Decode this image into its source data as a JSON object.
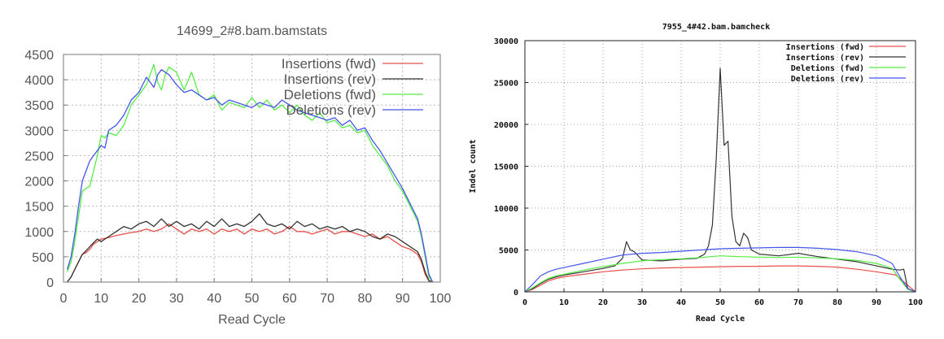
{
  "chart_data": [
    {
      "type": "line",
      "title": "14699_2#8.bam.bamstats",
      "xlabel": "Read Cycle",
      "ylabel": "",
      "xlim": [
        0,
        100
      ],
      "ylim": [
        0,
        4500
      ],
      "xticks": [
        0,
        10,
        20,
        30,
        40,
        50,
        60,
        70,
        80,
        90,
        100
      ],
      "yticks": [
        0,
        500,
        1000,
        1500,
        2000,
        2500,
        3000,
        3500,
        4000,
        4500
      ],
      "grid": true,
      "legend": "top-right",
      "series": [
        {
          "name": "Insertions (fwd)",
          "color": "#e8504a",
          "x": [
            1,
            2,
            3,
            4,
            5,
            6,
            7,
            8,
            9,
            10,
            12,
            14,
            16,
            18,
            20,
            22,
            24,
            26,
            28,
            30,
            32,
            34,
            36,
            38,
            40,
            42,
            44,
            46,
            48,
            50,
            52,
            54,
            56,
            58,
            60,
            62,
            64,
            66,
            68,
            70,
            72,
            74,
            76,
            78,
            80,
            82,
            84,
            86,
            88,
            90,
            92,
            94,
            95,
            96,
            97,
            98
          ],
          "y": [
            0,
            100,
            250,
            400,
            550,
            580,
            650,
            750,
            800,
            850,
            880,
            920,
            950,
            980,
            1000,
            1050,
            1000,
            1050,
            1150,
            1050,
            950,
            1050,
            1000,
            1050,
            950,
            1050,
            1000,
            1050,
            950,
            1050,
            1000,
            1050,
            950,
            1000,
            1100,
            1000,
            1000,
            950,
            1000,
            1050,
            950,
            1000,
            1000,
            950,
            900,
            950,
            850,
            900,
            800,
            700,
            650,
            550,
            400,
            150,
            20,
            0
          ]
        },
        {
          "name": "Insertions (rev)",
          "color": "#333333",
          "x": [
            1,
            2,
            3,
            4,
            5,
            6,
            7,
            8,
            9,
            10,
            12,
            14,
            16,
            18,
            20,
            22,
            24,
            26,
            28,
            30,
            32,
            34,
            36,
            38,
            40,
            42,
            44,
            46,
            48,
            50,
            52,
            54,
            56,
            58,
            60,
            62,
            64,
            66,
            68,
            70,
            72,
            74,
            76,
            78,
            80,
            82,
            84,
            86,
            88,
            90,
            92,
            94,
            95,
            96,
            97,
            98
          ],
          "y": [
            0,
            100,
            250,
            400,
            550,
            620,
            700,
            780,
            850,
            800,
            900,
            1000,
            1100,
            1050,
            1150,
            1200,
            1100,
            1250,
            1100,
            1200,
            1100,
            1150,
            1050,
            1200,
            1100,
            1250,
            1100,
            1150,
            1100,
            1200,
            1350,
            1150,
            1100,
            1150,
            1050,
            1200,
            1100,
            1150,
            1050,
            1100,
            1050,
            1100,
            1000,
            1050,
            1000,
            900,
            850,
            950,
            900,
            800,
            700,
            600,
            450,
            200,
            30,
            0
          ]
        },
        {
          "name": "Deletions (fwd)",
          "color": "#55ee44",
          "x": [
            1,
            2,
            3,
            4,
            5,
            6,
            7,
            8,
            9,
            10,
            11,
            12,
            14,
            16,
            18,
            20,
            22,
            24,
            25,
            26,
            27,
            28,
            29,
            30,
            32,
            34,
            36,
            38,
            40,
            42,
            44,
            46,
            48,
            50,
            52,
            54,
            56,
            58,
            60,
            62,
            64,
            66,
            68,
            70,
            72,
            74,
            76,
            78,
            80,
            82,
            84,
            86,
            88,
            90,
            92,
            94,
            95,
            96,
            97,
            98
          ],
          "y": [
            200,
            400,
            800,
            1300,
            1800,
            1850,
            1900,
            2200,
            2500,
            2900,
            2850,
            2950,
            2900,
            3100,
            3500,
            3700,
            3900,
            4300,
            3950,
            3800,
            4100,
            4250,
            4200,
            4150,
            3800,
            4150,
            3700,
            3600,
            3700,
            3400,
            3550,
            3500,
            3450,
            3650,
            3450,
            3600,
            3400,
            3500,
            3350,
            3500,
            3300,
            3200,
            3350,
            3150,
            3200,
            3050,
            3100,
            2950,
            3000,
            2700,
            2500,
            2300,
            2000,
            1800,
            1500,
            1200,
            900,
            500,
            100,
            0
          ]
        },
        {
          "name": "Deletions (rev)",
          "color": "#4455ee",
          "x": [
            1,
            2,
            3,
            4,
            5,
            6,
            7,
            8,
            9,
            10,
            11,
            12,
            14,
            16,
            18,
            20,
            22,
            24,
            25,
            26,
            27,
            28,
            29,
            30,
            32,
            34,
            36,
            38,
            40,
            42,
            44,
            46,
            48,
            50,
            52,
            54,
            56,
            58,
            60,
            62,
            64,
            66,
            68,
            70,
            72,
            74,
            76,
            78,
            80,
            82,
            84,
            86,
            88,
            90,
            92,
            94,
            95,
            96,
            97,
            98
          ],
          "y": [
            250,
            500,
            950,
            1500,
            2000,
            2200,
            2400,
            2500,
            2600,
            2700,
            2650,
            3000,
            3100,
            3300,
            3600,
            3750,
            4050,
            3850,
            4100,
            4200,
            4150,
            4100,
            4000,
            3900,
            3750,
            3800,
            3700,
            3600,
            3650,
            3500,
            3600,
            3550,
            3500,
            3450,
            3550,
            3500,
            3450,
            3600,
            3500,
            3400,
            3350,
            3300,
            3250,
            3200,
            3250,
            3100,
            3200,
            3000,
            3050,
            2800,
            2600,
            2350,
            2100,
            1850,
            1550,
            1250,
            950,
            550,
            150,
            0
          ]
        }
      ]
    },
    {
      "type": "line",
      "title": "7955_4#42.bam.bamcheck",
      "xlabel": "Read Cycle",
      "ylabel": "Indel count",
      "xlim": [
        0,
        100
      ],
      "ylim": [
        0,
        30000
      ],
      "xticks": [
        0,
        10,
        20,
        30,
        40,
        50,
        60,
        70,
        80,
        90,
        100
      ],
      "yticks": [
        0,
        5000,
        10000,
        15000,
        20000,
        25000,
        30000
      ],
      "grid": true,
      "legend": "top-right",
      "series": [
        {
          "name": "Insertions (fwd)",
          "color": "#e8504a",
          "x": [
            0,
            2,
            4,
            6,
            8,
            10,
            15,
            20,
            25,
            30,
            35,
            40,
            45,
            50,
            55,
            60,
            65,
            70,
            75,
            80,
            85,
            90,
            95,
            98,
            100
          ],
          "y": [
            0,
            300,
            800,
            1300,
            1600,
            1800,
            2100,
            2400,
            2600,
            2750,
            2850,
            2900,
            2950,
            3000,
            3050,
            3050,
            3100,
            3100,
            3050,
            2950,
            2700,
            2400,
            2000,
            800,
            0
          ]
        },
        {
          "name": "Insertions (rev)",
          "color": "#333333",
          "x": [
            0,
            2,
            4,
            6,
            8,
            10,
            15,
            20,
            23,
            25,
            26,
            27,
            28,
            30,
            35,
            40,
            44,
            46,
            47,
            48,
            49,
            50,
            51,
            52,
            53,
            54,
            55,
            56,
            57,
            58,
            60,
            65,
            70,
            75,
            80,
            85,
            90,
            94,
            96,
            97,
            98,
            100
          ],
          "y": [
            0,
            400,
            1000,
            1500,
            1800,
            2000,
            2400,
            2800,
            3100,
            4000,
            6000,
            5000,
            4800,
            3800,
            3700,
            3900,
            4000,
            4500,
            5500,
            8000,
            16000,
            26700,
            17500,
            18000,
            9000,
            6000,
            5500,
            7000,
            6500,
            5000,
            4500,
            4300,
            4600,
            4200,
            3900,
            3600,
            3100,
            2700,
            2600,
            2700,
            400,
            0
          ]
        },
        {
          "name": "Deletions (fwd)",
          "color": "#55ee44",
          "x": [
            0,
            2,
            4,
            6,
            8,
            10,
            15,
            20,
            25,
            30,
            35,
            40,
            45,
            50,
            55,
            60,
            65,
            70,
            75,
            80,
            85,
            90,
            94,
            96,
            98,
            100
          ],
          "y": [
            0,
            500,
            1100,
            1600,
            1900,
            2100,
            2600,
            3000,
            3400,
            3700,
            3850,
            3950,
            4100,
            4300,
            4200,
            4150,
            4100,
            4150,
            4050,
            3950,
            3750,
            3400,
            2800,
            1500,
            300,
            0
          ]
        },
        {
          "name": "Deletions (rev)",
          "color": "#4455ee",
          "x": [
            0,
            2,
            4,
            6,
            8,
            10,
            15,
            20,
            25,
            30,
            35,
            40,
            45,
            50,
            55,
            60,
            65,
            70,
            75,
            80,
            85,
            90,
            94,
            96,
            98,
            100
          ],
          "y": [
            0,
            900,
            1900,
            2400,
            2700,
            2900,
            3400,
            3900,
            4400,
            4600,
            4700,
            4850,
            5000,
            5150,
            5200,
            5250,
            5300,
            5300,
            5200,
            5050,
            4800,
            4300,
            3400,
            1800,
            400,
            0
          ]
        }
      ]
    }
  ]
}
